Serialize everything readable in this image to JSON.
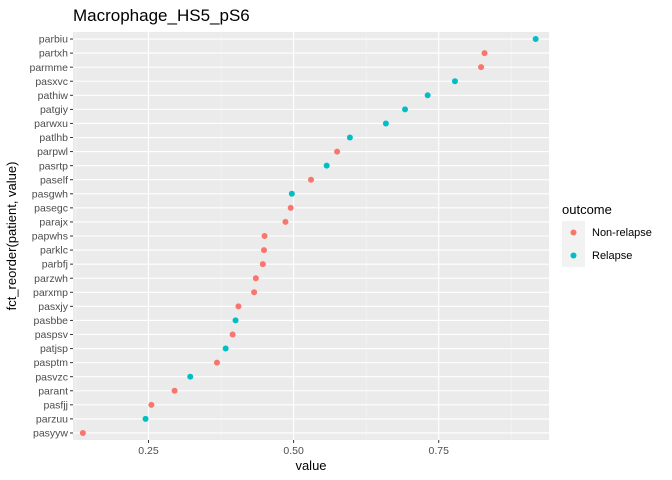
{
  "chart_data": {
    "type": "scatter",
    "title": "Macrophage_HS5_pS6",
    "xlabel": "value",
    "ylabel": "fct_reorder(patient, value)",
    "xlim": [
      0.12,
      0.94
    ],
    "x_ticks": [
      0.25,
      0.5,
      0.75
    ],
    "x_tick_labels": [
      "0.25",
      "0.50",
      "0.75"
    ],
    "grid": true,
    "legend": {
      "title": "outcome",
      "placement": "right",
      "entries": [
        {
          "name": "Non-relapse",
          "color": "#F8766D"
        },
        {
          "name": "Relapse",
          "color": "#00BFC4"
        }
      ]
    },
    "categories": [
      "pasyyw",
      "parzuu",
      "pasfjj",
      "parant",
      "pasvzc",
      "pasptm",
      "patjsp",
      "paspsv",
      "pasbbe",
      "pasxjy",
      "parxmp",
      "parzwh",
      "parbfj",
      "parklc",
      "papwhs",
      "parajx",
      "pasegc",
      "pasgwh",
      "paself",
      "pasrtp",
      "parpwl",
      "patlhb",
      "parwxu",
      "patgiy",
      "pathiw",
      "pasxvc",
      "parmme",
      "partxh",
      "parbiu"
    ],
    "points": [
      {
        "patient": "pasyyw",
        "value": 0.137,
        "outcome": "Non-relapse"
      },
      {
        "patient": "parzuu",
        "value": 0.245,
        "outcome": "Relapse"
      },
      {
        "patient": "pasfjj",
        "value": 0.255,
        "outcome": "Non-relapse"
      },
      {
        "patient": "parant",
        "value": 0.295,
        "outcome": "Non-relapse"
      },
      {
        "patient": "pasvzc",
        "value": 0.322,
        "outcome": "Relapse"
      },
      {
        "patient": "pasptm",
        "value": 0.368,
        "outcome": "Non-relapse"
      },
      {
        "patient": "patjsp",
        "value": 0.383,
        "outcome": "Relapse"
      },
      {
        "patient": "paspsv",
        "value": 0.395,
        "outcome": "Non-relapse"
      },
      {
        "patient": "pasbbe",
        "value": 0.4,
        "outcome": "Relapse"
      },
      {
        "patient": "pasxjy",
        "value": 0.405,
        "outcome": "Non-relapse"
      },
      {
        "patient": "parxmp",
        "value": 0.432,
        "outcome": "Non-relapse"
      },
      {
        "patient": "parzwh",
        "value": 0.435,
        "outcome": "Non-relapse"
      },
      {
        "patient": "parbfj",
        "value": 0.447,
        "outcome": "Non-relapse"
      },
      {
        "patient": "parklc",
        "value": 0.449,
        "outcome": "Non-relapse"
      },
      {
        "patient": "papwhs",
        "value": 0.45,
        "outcome": "Non-relapse"
      },
      {
        "patient": "parajx",
        "value": 0.486,
        "outcome": "Non-relapse"
      },
      {
        "patient": "pasegc",
        "value": 0.495,
        "outcome": "Non-relapse"
      },
      {
        "patient": "pasgwh",
        "value": 0.497,
        "outcome": "Relapse"
      },
      {
        "patient": "paself",
        "value": 0.53,
        "outcome": "Non-relapse"
      },
      {
        "patient": "pasrtp",
        "value": 0.557,
        "outcome": "Relapse"
      },
      {
        "patient": "parpwl",
        "value": 0.575,
        "outcome": "Non-relapse"
      },
      {
        "patient": "patlhb",
        "value": 0.597,
        "outcome": "Relapse"
      },
      {
        "patient": "parwxu",
        "value": 0.659,
        "outcome": "Relapse"
      },
      {
        "patient": "patgiy",
        "value": 0.692,
        "outcome": "Relapse"
      },
      {
        "patient": "pathiw",
        "value": 0.731,
        "outcome": "Relapse"
      },
      {
        "patient": "pasxvc",
        "value": 0.778,
        "outcome": "Relapse"
      },
      {
        "patient": "parmme",
        "value": 0.823,
        "outcome": "Non-relapse"
      },
      {
        "patient": "partxh",
        "value": 0.829,
        "outcome": "Non-relapse"
      },
      {
        "patient": "parbiu",
        "value": 0.917,
        "outcome": "Relapse"
      }
    ]
  }
}
